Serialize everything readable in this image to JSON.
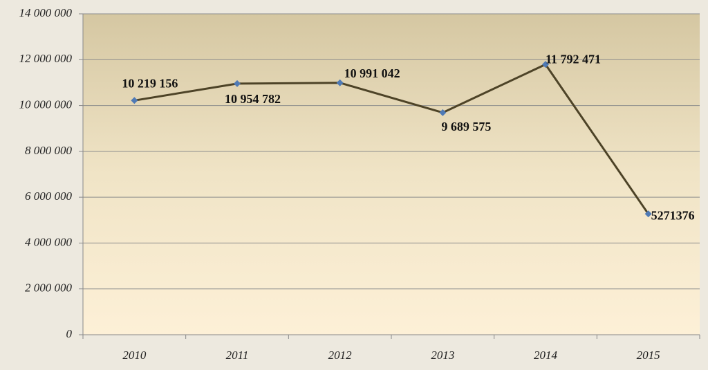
{
  "chart_data": {
    "type": "line",
    "categories": [
      "2010",
      "2011",
      "2012",
      "2013",
      "2014",
      "2015"
    ],
    "values": [
      10219156,
      10954782,
      10991042,
      9689575,
      11792471,
      5271376
    ],
    "value_labels": [
      "10 219 156",
      "10 954 782",
      "10 991 042",
      "9 689 575",
      "11 792 471",
      "5271376"
    ],
    "color": "#4d4327",
    "marker_color": "#4f7ab5",
    "ylim": [
      0,
      14000000
    ],
    "yticks": [
      0,
      {
        "value": 2000000,
        "label": "2 000 000"
      },
      {
        "value": 4000000,
        "label": "4 000 000"
      },
      {
        "value": 6000000,
        "label": "6 000 000"
      },
      {
        "value": 8000000,
        "label": "8 000 000"
      },
      {
        "value": 10000000,
        "label": "10 000 000"
      },
      {
        "value": 12000000,
        "label": "12 000 000"
      },
      {
        "value": 14000000,
        "label": "14 000 000"
      }
    ],
    "grid": true
  }
}
